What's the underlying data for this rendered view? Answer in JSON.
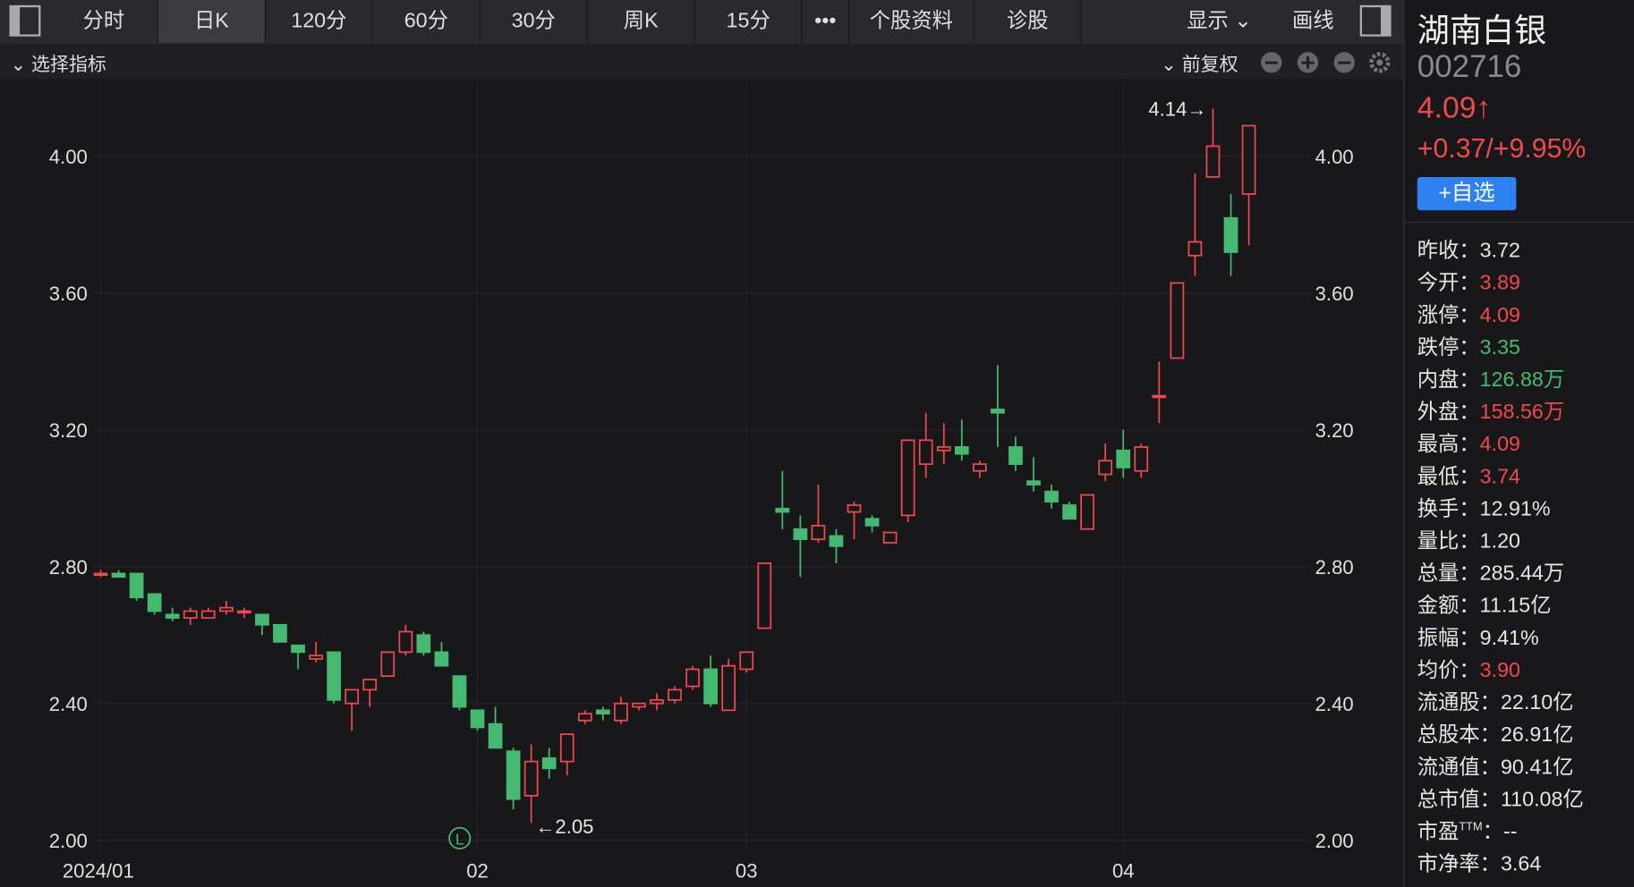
{
  "toolbar": {
    "tabs": [
      "分时",
      "日K",
      "120分",
      "60分",
      "30分",
      "周K",
      "15分",
      "•••",
      "个股资料",
      "诊股"
    ],
    "right": [
      "显示",
      "画线"
    ],
    "indicator": "选择指标",
    "adjust": "前复权"
  },
  "quote": {
    "name": "湖南白银",
    "code": "002716",
    "price": "4.09↑",
    "change": "+0.37/+9.95%",
    "button": "+自选",
    "stats": [
      {
        "label": "昨收：",
        "value": "3.72",
        "color": "#e6e6e6"
      },
      {
        "label": "今开：",
        "value": "3.89",
        "color": "#f0494b"
      },
      {
        "label": "涨停：",
        "value": "4.09",
        "color": "#f0494b"
      },
      {
        "label": "跌停：",
        "value": "3.35",
        "color": "#45b96f"
      },
      {
        "label": "内盘：",
        "value": "126.88万",
        "color": "#45b96f"
      },
      {
        "label": "外盘：",
        "value": "158.56万",
        "color": "#f0494b"
      },
      {
        "label": "最高：",
        "value": "4.09",
        "color": "#f0494b"
      },
      {
        "label": "最低：",
        "value": "3.74",
        "color": "#f0494b"
      },
      {
        "label": "换手：",
        "value": "12.91%",
        "color": "#e6e6e6"
      },
      {
        "label": "量比：",
        "value": "1.20",
        "color": "#e6e6e6"
      },
      {
        "label": "总量：",
        "value": "285.44万",
        "color": "#e6e6e6"
      },
      {
        "label": "金额：",
        "value": "11.15亿",
        "color": "#e6e6e6"
      },
      {
        "label": "振幅：",
        "value": "9.41%",
        "color": "#e6e6e6"
      },
      {
        "label": "均价：",
        "value": "3.90",
        "color": "#f0494b"
      },
      {
        "label": "流通股：",
        "value": "22.10亿",
        "color": "#e6e6e6"
      },
      {
        "label": "总股本：",
        "value": "26.91亿",
        "color": "#e6e6e6"
      },
      {
        "label": "流通值：",
        "value": "90.41亿",
        "color": "#e6e6e6"
      },
      {
        "label": "总市值：",
        "value": "110.08亿",
        "color": "#e6e6e6"
      },
      {
        "label": "市盈",
        "sup": "TTM",
        "sep": "：",
        "value": "--",
        "color": "#e6e6e6"
      },
      {
        "label": "市净率：",
        "value": "3.64",
        "color": "#e6e6e6"
      }
    ]
  },
  "chart_data": {
    "type": "candlestick",
    "categories": [
      "2024/01",
      null,
      null,
      null,
      null,
      null,
      null,
      null,
      null,
      null,
      null,
      null,
      null,
      null,
      null,
      null,
      null,
      null,
      null,
      null,
      null,
      "02",
      null,
      null,
      null,
      null,
      null,
      null,
      null,
      null,
      null,
      null,
      null,
      null,
      null,
      null,
      "03",
      null,
      null,
      null,
      null,
      null,
      null,
      null,
      null,
      null,
      null,
      null,
      null,
      null,
      null,
      null,
      null,
      null,
      null,
      null,
      null,
      "04",
      null,
      null,
      null,
      null,
      null,
      null,
      null
    ],
    "open": [
      2.78,
      2.78,
      2.78,
      2.72,
      2.66,
      2.65,
      2.65,
      2.67,
      2.67,
      2.66,
      2.63,
      2.57,
      2.53,
      2.55,
      2.4,
      2.44,
      2.48,
      2.55,
      2.6,
      2.55,
      2.48,
      2.38,
      2.34,
      2.26,
      2.13,
      2.24,
      2.23,
      2.35,
      2.38,
      2.35,
      2.39,
      2.4,
      2.41,
      2.45,
      2.5,
      2.38,
      2.5,
      2.62,
      2.97,
      2.91,
      2.88,
      2.89,
      2.96,
      2.94,
      2.87,
      2.95,
      3.1,
      3.14,
      3.15,
      3.08,
      3.26,
      3.15,
      3.05,
      3.02,
      2.98,
      2.91,
      3.07,
      3.14,
      3.08,
      3.3,
      3.41,
      3.71,
      3.94,
      3.82,
      3.89
    ],
    "close": [
      2.78,
      2.77,
      2.71,
      2.67,
      2.65,
      2.67,
      2.67,
      2.68,
      2.67,
      2.63,
      2.58,
      2.55,
      2.54,
      2.41,
      2.44,
      2.47,
      2.55,
      2.61,
      2.55,
      2.51,
      2.39,
      2.33,
      2.27,
      2.12,
      2.23,
      2.21,
      2.31,
      2.37,
      2.37,
      2.4,
      2.4,
      2.41,
      2.44,
      2.5,
      2.4,
      2.51,
      2.55,
      2.81,
      2.96,
      2.88,
      2.92,
      2.86,
      2.98,
      2.92,
      2.9,
      3.17,
      3.17,
      3.15,
      3.13,
      3.1,
      3.25,
      3.1,
      3.04,
      2.99,
      2.94,
      3.01,
      3.11,
      3.09,
      3.15,
      3.3,
      3.63,
      3.75,
      4.03,
      3.72,
      4.09
    ],
    "high": [
      2.79,
      2.79,
      2.78,
      2.72,
      2.68,
      2.68,
      2.68,
      2.7,
      2.68,
      2.66,
      2.63,
      2.57,
      2.58,
      2.55,
      2.44,
      2.47,
      2.55,
      2.63,
      2.61,
      2.58,
      2.48,
      2.38,
      2.39,
      2.27,
      2.28,
      2.27,
      2.31,
      2.38,
      2.39,
      2.42,
      2.4,
      2.43,
      2.45,
      2.51,
      2.54,
      2.53,
      2.55,
      2.81,
      3.08,
      2.95,
      3.04,
      2.91,
      2.99,
      2.95,
      2.9,
      3.17,
      3.25,
      3.22,
      3.23,
      3.11,
      3.39,
      3.18,
      3.12,
      3.04,
      2.99,
      3.01,
      3.16,
      3.2,
      3.16,
      3.4,
      3.63,
      3.95,
      4.14,
      3.89,
      4.09
    ],
    "low": [
      2.77,
      2.77,
      2.7,
      2.66,
      2.64,
      2.63,
      2.65,
      2.66,
      2.65,
      2.6,
      2.58,
      2.5,
      2.52,
      2.4,
      2.32,
      2.39,
      2.48,
      2.54,
      2.54,
      2.51,
      2.38,
      2.32,
      2.27,
      2.09,
      2.05,
      2.18,
      2.19,
      2.34,
      2.35,
      2.34,
      2.38,
      2.38,
      2.4,
      2.44,
      2.39,
      2.38,
      2.49,
      2.62,
      2.91,
      2.77,
      2.87,
      2.81,
      2.88,
      2.9,
      2.87,
      2.93,
      3.06,
      3.1,
      3.11,
      3.06,
      3.15,
      3.08,
      3.02,
      2.97,
      2.94,
      2.91,
      3.05,
      3.06,
      3.06,
      3.22,
      3.41,
      3.65,
      3.94,
      3.65,
      3.74
    ],
    "up_color": "#f0494b",
    "down_color": "#45b96f",
    "ylim": [
      1.96,
      4.22
    ],
    "yticks": [
      {
        "value": 2,
        "label": "2.00"
      },
      {
        "value": 2.4,
        "label": "2.40"
      },
      {
        "value": 2.8,
        "label": "2.80"
      },
      {
        "value": 3.2,
        "label": "3.20"
      },
      {
        "value": 3.6,
        "label": "3.60"
      },
      {
        "value": 4,
        "label": "4.00"
      }
    ],
    "grid": true,
    "max_label": "4.14→",
    "min_label": "←2.05",
    "marker": "L"
  }
}
